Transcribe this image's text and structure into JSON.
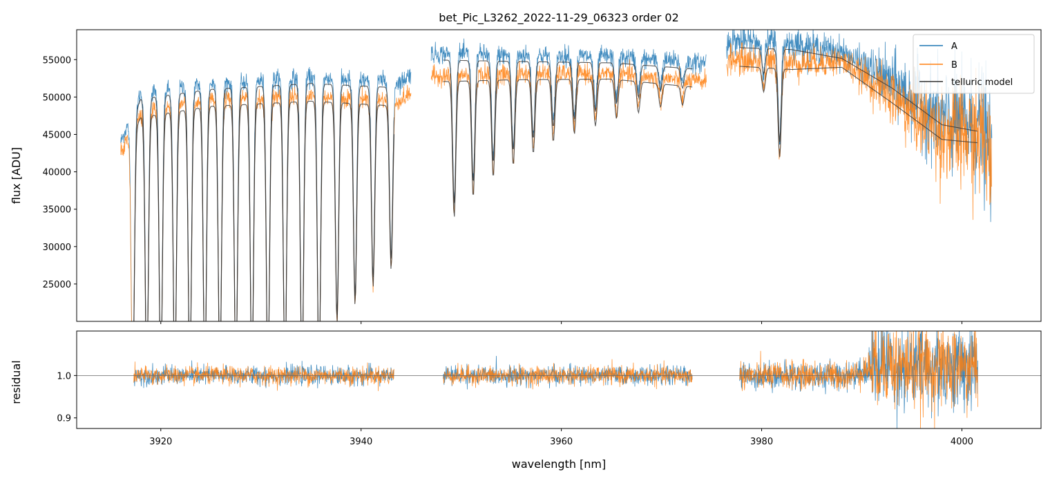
{
  "chart_data": {
    "type": "line",
    "title": "bet_Pic_L3262_2022-11-29_06323  order 02",
    "xlabel": "wavelength [nm]",
    "top_panel": {
      "ylabel": "flux [ADU]",
      "ylim": [
        20000,
        59000
      ],
      "yticks": [
        25000,
        30000,
        35000,
        40000,
        45000,
        50000,
        55000
      ],
      "ytick_labels": [
        "25000",
        "30000",
        "35000",
        "40000",
        "45000",
        "50000",
        "55000"
      ],
      "series": [
        {
          "name": "A",
          "color": "#1f77b4",
          "segments": [
            [
              3916,
              3945
            ],
            [
              3947,
              3974.5
            ],
            [
              3976.5,
              4003
            ]
          ],
          "continuum": [
            [
              3916,
              44000
            ],
            [
              3918,
              50500
            ],
            [
              3925,
              51800
            ],
            [
              3935,
              52600
            ],
            [
              3944,
              52000
            ],
            [
              3947,
              55800
            ],
            [
              3955,
              55600
            ],
            [
              3965,
              55400
            ],
            [
              3974,
              54500
            ],
            [
              3977,
              57500
            ],
            [
              3983,
              57200
            ],
            [
              3988,
              56000
            ],
            [
              3993,
              52000
            ],
            [
              3998,
              47000
            ],
            [
              4002,
              46000
            ],
            [
              4003,
              42000
            ]
          ]
        },
        {
          "name": "B",
          "color": "#ff7f0e",
          "segments": [
            [
              3916,
              3945
            ],
            [
              3947,
              3974.5
            ],
            [
              3976.5,
              4003
            ]
          ],
          "continuum": [
            [
              3916,
              42500
            ],
            [
              3918,
              48000
            ],
            [
              3925,
              49500
            ],
            [
              3935,
              50200
            ],
            [
              3944,
              49500
            ],
            [
              3947,
              52800
            ],
            [
              3955,
              53100
            ],
            [
              3965,
              53200
            ],
            [
              3974,
              52000
            ],
            [
              3977,
              55000
            ],
            [
              3983,
              54500
            ],
            [
              3988,
              54800
            ],
            [
              3993,
              50000
            ],
            [
              3998,
              45000
            ],
            [
              4002,
              44500
            ],
            [
              4003,
              41000
            ]
          ]
        },
        {
          "name": "telluric model",
          "color": "#333333"
        }
      ],
      "telluric_lines": [
        {
          "x": 3917.2,
          "depth": 0.75
        },
        {
          "x": 3918.6,
          "depth": 0.75
        },
        {
          "x": 3920.0,
          "depth": 0.75
        },
        {
          "x": 3921.4,
          "depth": 0.75
        },
        {
          "x": 3922.9,
          "depth": 0.75
        },
        {
          "x": 3924.4,
          "depth": 0.75
        },
        {
          "x": 3925.9,
          "depth": 0.75
        },
        {
          "x": 3927.5,
          "depth": 0.75
        },
        {
          "x": 3929.1,
          "depth": 0.75
        },
        {
          "x": 3930.7,
          "depth": 0.75
        },
        {
          "x": 3932.4,
          "depth": 0.75
        },
        {
          "x": 3934.1,
          "depth": 0.75
        },
        {
          "x": 3935.8,
          "depth": 0.75
        },
        {
          "x": 3937.6,
          "depth": 0.6
        },
        {
          "x": 3939.4,
          "depth": 0.55
        },
        {
          "x": 3941.2,
          "depth": 0.5
        },
        {
          "x": 3943.0,
          "depth": 0.45
        },
        {
          "x": 3949.3,
          "depth": 0.35
        },
        {
          "x": 3951.2,
          "depth": 0.3
        },
        {
          "x": 3953.2,
          "depth": 0.25
        },
        {
          "x": 3955.2,
          "depth": 0.22
        },
        {
          "x": 3957.2,
          "depth": 0.19
        },
        {
          "x": 3959.2,
          "depth": 0.16
        },
        {
          "x": 3961.3,
          "depth": 0.14
        },
        {
          "x": 3963.4,
          "depth": 0.12
        },
        {
          "x": 3965.5,
          "depth": 0.1
        },
        {
          "x": 3967.7,
          "depth": 0.08
        },
        {
          "x": 3969.9,
          "depth": 0.06
        },
        {
          "x": 3972.1,
          "depth": 0.05
        },
        {
          "x": 3981.8,
          "depth": 0.22
        },
        {
          "x": 3980.2,
          "depth": 0.06
        }
      ],
      "legend": {
        "location": "upper right",
        "entries": [
          "A",
          "B",
          "telluric model"
        ]
      }
    },
    "bottom_panel": {
      "ylabel": "residual",
      "ylim": [
        0.875,
        1.105
      ],
      "yticks": [
        0.9,
        1.0
      ],
      "ytick_labels": [
        "0.9",
        "1.0"
      ],
      "reference_line": 1.0,
      "segments": [
        [
          3917.3,
          3943.3
        ],
        [
          3948.2,
          3973.1
        ],
        [
          3977.8,
          4001.6
        ]
      ]
    },
    "xlim": [
      3911.6,
      4007.9
    ],
    "xticks": [
      3920,
      3940,
      3960,
      3980,
      4000
    ],
    "xtick_labels": [
      "3920",
      "3940",
      "3960",
      "3980",
      "4000"
    ]
  }
}
